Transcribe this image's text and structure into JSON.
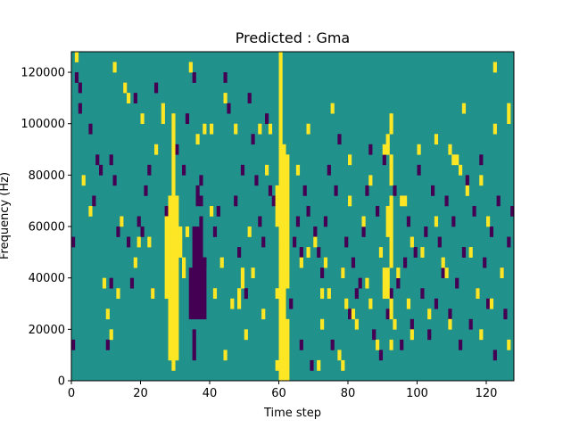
{
  "chart_data": {
    "type": "heatmap",
    "title": "Predicted : Gma",
    "xlabel": "Time step",
    "ylabel": "Frequency (Hz)",
    "xlim": [
      0,
      128
    ],
    "ylim": [
      0,
      128000
    ],
    "x_ticks": [
      0,
      20,
      40,
      60,
      80,
      100,
      120
    ],
    "y_ticks": [
      0,
      20000,
      40000,
      60000,
      80000,
      100000,
      120000
    ],
    "x_tick_labels": [
      "0",
      "20",
      "40",
      "60",
      "80",
      "100",
      "120"
    ],
    "y_tick_labels": [
      "0",
      "20000",
      "40000",
      "60000",
      "80000",
      "100000",
      "120000"
    ],
    "rows": 32,
    "row_height_hz": 4000,
    "colormap": "viridis",
    "colors": {
      "background": "#21918c",
      "high": "#fde725",
      "low": "#440154"
    },
    "high_cells": [
      [
        28,
        2
      ],
      [
        28,
        3
      ],
      [
        28,
        4
      ],
      [
        28,
        5
      ],
      [
        28,
        6
      ],
      [
        28,
        7
      ],
      [
        28,
        8
      ],
      [
        28,
        9
      ],
      [
        28,
        10
      ],
      [
        28,
        11
      ],
      [
        28,
        12
      ],
      [
        28,
        13
      ],
      [
        28,
        14
      ],
      [
        28,
        15
      ],
      [
        28,
        16
      ],
      [
        28,
        17
      ],
      [
        29,
        1
      ],
      [
        29,
        2
      ],
      [
        29,
        3
      ],
      [
        29,
        4
      ],
      [
        29,
        5
      ],
      [
        29,
        6
      ],
      [
        29,
        7
      ],
      [
        29,
        8
      ],
      [
        29,
        9
      ],
      [
        29,
        10
      ],
      [
        29,
        11
      ],
      [
        29,
        12
      ],
      [
        29,
        13
      ],
      [
        29,
        14
      ],
      [
        29,
        15
      ],
      [
        29,
        16
      ],
      [
        29,
        17
      ],
      [
        29,
        18
      ],
      [
        29,
        19
      ],
      [
        29,
        20
      ],
      [
        29,
        21
      ],
      [
        29,
        22
      ],
      [
        29,
        23
      ],
      [
        29,
        24
      ],
      [
        29,
        25
      ],
      [
        30,
        2
      ],
      [
        30,
        3
      ],
      [
        30,
        4
      ],
      [
        30,
        5
      ],
      [
        30,
        6
      ],
      [
        30,
        7
      ],
      [
        30,
        8
      ],
      [
        30,
        9
      ],
      [
        30,
        10
      ],
      [
        30,
        11
      ],
      [
        30,
        12
      ],
      [
        30,
        13
      ],
      [
        30,
        14
      ],
      [
        30,
        15
      ],
      [
        30,
        16
      ],
      [
        30,
        17
      ],
      [
        27,
        8
      ],
      [
        27,
        9
      ],
      [
        27,
        10
      ],
      [
        27,
        11
      ],
      [
        27,
        12
      ],
      [
        27,
        13
      ],
      [
        27,
        14
      ],
      [
        27,
        15
      ],
      [
        31,
        12
      ],
      [
        31,
        13
      ],
      [
        31,
        14
      ],
      [
        32,
        10
      ],
      [
        32,
        11
      ],
      [
        33,
        14
      ],
      [
        60,
        0
      ],
      [
        60,
        1
      ],
      [
        60,
        2
      ],
      [
        60,
        3
      ],
      [
        60,
        4
      ],
      [
        60,
        5
      ],
      [
        60,
        6
      ],
      [
        60,
        7
      ],
      [
        60,
        8
      ],
      [
        60,
        9
      ],
      [
        60,
        10
      ],
      [
        60,
        11
      ],
      [
        60,
        12
      ],
      [
        60,
        13
      ],
      [
        60,
        14
      ],
      [
        60,
        15
      ],
      [
        60,
        16
      ],
      [
        60,
        17
      ],
      [
        60,
        18
      ],
      [
        60,
        19
      ],
      [
        60,
        20
      ],
      [
        60,
        21
      ],
      [
        60,
        22
      ],
      [
        60,
        23
      ],
      [
        60,
        24
      ],
      [
        60,
        25
      ],
      [
        60,
        26
      ],
      [
        60,
        27
      ],
      [
        60,
        28
      ],
      [
        60,
        29
      ],
      [
        60,
        30
      ],
      [
        60,
        31
      ],
      [
        61,
        0
      ],
      [
        61,
        1
      ],
      [
        61,
        2
      ],
      [
        61,
        3
      ],
      [
        61,
        4
      ],
      [
        61,
        5
      ],
      [
        61,
        6
      ],
      [
        61,
        7
      ],
      [
        61,
        8
      ],
      [
        61,
        9
      ],
      [
        61,
        10
      ],
      [
        61,
        11
      ],
      [
        61,
        12
      ],
      [
        61,
        13
      ],
      [
        61,
        14
      ],
      [
        61,
        15
      ],
      [
        61,
        16
      ],
      [
        61,
        17
      ],
      [
        61,
        18
      ],
      [
        61,
        19
      ],
      [
        61,
        20
      ],
      [
        61,
        21
      ],
      [
        61,
        22
      ],
      [
        62,
        0
      ],
      [
        62,
        1
      ],
      [
        62,
        2
      ],
      [
        62,
        3
      ],
      [
        62,
        4
      ],
      [
        62,
        5
      ],
      [
        62,
        9
      ],
      [
        62,
        10
      ],
      [
        62,
        11
      ],
      [
        62,
        12
      ],
      [
        62,
        13
      ],
      [
        62,
        14
      ],
      [
        62,
        15
      ],
      [
        62,
        16
      ],
      [
        62,
        17
      ],
      [
        62,
        18
      ],
      [
        62,
        19
      ],
      [
        62,
        20
      ],
      [
        62,
        21
      ],
      [
        59,
        1
      ],
      [
        59,
        8
      ],
      [
        59,
        15
      ],
      [
        59,
        16
      ],
      [
        59,
        17
      ],
      [
        59,
        18
      ],
      [
        91,
        8
      ],
      [
        91,
        9
      ],
      [
        91,
        10
      ],
      [
        91,
        14
      ],
      [
        91,
        15
      ],
      [
        91,
        16
      ],
      [
        91,
        22
      ],
      [
        91,
        23
      ],
      [
        92,
        6
      ],
      [
        92,
        7
      ],
      [
        92,
        11
      ],
      [
        92,
        12
      ],
      [
        92,
        13
      ],
      [
        92,
        14
      ],
      [
        92,
        15
      ],
      [
        92,
        16
      ],
      [
        92,
        17
      ],
      [
        92,
        19
      ],
      [
        92,
        20
      ],
      [
        92,
        21
      ],
      [
        92,
        24
      ],
      [
        92,
        25
      ],
      [
        90,
        8
      ],
      [
        90,
        9
      ],
      [
        90,
        10
      ],
      [
        90,
        22
      ],
      [
        1,
        31
      ],
      [
        3,
        19
      ],
      [
        5,
        16
      ],
      [
        9,
        9
      ],
      [
        10,
        6
      ],
      [
        11,
        4
      ],
      [
        12,
        30
      ],
      [
        13,
        8
      ],
      [
        14,
        15
      ],
      [
        15,
        28
      ],
      [
        16,
        27
      ],
      [
        18,
        11
      ],
      [
        19,
        13
      ],
      [
        20,
        25
      ],
      [
        22,
        13
      ],
      [
        23,
        8
      ],
      [
        24,
        22
      ],
      [
        26,
        26
      ],
      [
        26,
        25
      ],
      [
        34,
        30
      ],
      [
        36,
        23
      ],
      [
        38,
        24
      ],
      [
        40,
        24
      ],
      [
        40,
        16
      ],
      [
        41,
        8
      ],
      [
        43,
        11
      ],
      [
        44,
        27
      ],
      [
        44,
        2
      ],
      [
        46,
        7
      ],
      [
        47,
        24
      ],
      [
        48,
        8
      ],
      [
        48,
        7
      ],
      [
        49,
        10
      ],
      [
        49,
        9
      ],
      [
        50,
        4
      ],
      [
        51,
        14
      ],
      [
        52,
        10
      ],
      [
        54,
        24
      ],
      [
        55,
        6
      ],
      [
        56,
        20
      ],
      [
        57,
        24
      ],
      [
        65,
        20
      ],
      [
        66,
        11
      ],
      [
        68,
        24
      ],
      [
        68,
        12
      ],
      [
        70,
        13
      ],
      [
        71,
        1
      ],
      [
        72,
        5
      ],
      [
        72,
        8
      ],
      [
        73,
        11
      ],
      [
        74,
        8
      ],
      [
        75,
        26
      ],
      [
        77,
        2
      ],
      [
        78,
        1
      ],
      [
        78,
        10
      ],
      [
        79,
        7
      ],
      [
        80,
        17
      ],
      [
        80,
        21
      ],
      [
        81,
        6
      ],
      [
        82,
        5
      ],
      [
        84,
        15
      ],
      [
        85,
        9
      ],
      [
        86,
        7
      ],
      [
        86,
        19
      ],
      [
        88,
        3
      ],
      [
        89,
        12
      ],
      [
        92,
        3
      ],
      [
        93,
        5
      ],
      [
        94,
        10
      ],
      [
        95,
        17
      ],
      [
        96,
        17
      ],
      [
        97,
        7
      ],
      [
        98,
        13
      ],
      [
        98,
        4
      ],
      [
        100,
        22
      ],
      [
        101,
        12
      ],
      [
        103,
        6
      ],
      [
        105,
        23
      ],
      [
        105,
        15
      ],
      [
        107,
        11
      ],
      [
        108,
        10
      ],
      [
        109,
        22
      ],
      [
        109,
        5
      ],
      [
        110,
        21
      ],
      [
        111,
        21
      ],
      [
        112,
        20
      ],
      [
        113,
        26
      ],
      [
        114,
        18
      ],
      [
        115,
        12
      ],
      [
        117,
        8
      ],
      [
        118,
        4
      ],
      [
        118,
        19
      ],
      [
        120,
        15
      ],
      [
        121,
        7
      ],
      [
        122,
        24
      ],
      [
        122,
        30
      ],
      [
        124,
        10
      ],
      [
        126,
        3
      ],
      [
        126,
        25
      ],
      [
        126,
        26
      ]
    ],
    "low_cells": [
      [
        34,
        6
      ],
      [
        34,
        7
      ],
      [
        34,
        8
      ],
      [
        34,
        9
      ],
      [
        34,
        10
      ],
      [
        35,
        6
      ],
      [
        35,
        7
      ],
      [
        35,
        8
      ],
      [
        35,
        9
      ],
      [
        35,
        10
      ],
      [
        35,
        11
      ],
      [
        36,
        6
      ],
      [
        36,
        7
      ],
      [
        36,
        8
      ],
      [
        36,
        9
      ],
      [
        36,
        10
      ],
      [
        36,
        11
      ],
      [
        36,
        12
      ],
      [
        36,
        13
      ],
      [
        36,
        14
      ],
      [
        36,
        17
      ],
      [
        36,
        18
      ],
      [
        37,
        6
      ],
      [
        37,
        7
      ],
      [
        37,
        8
      ],
      [
        37,
        9
      ],
      [
        37,
        10
      ],
      [
        37,
        11
      ],
      [
        37,
        12
      ],
      [
        37,
        13
      ],
      [
        37,
        14
      ],
      [
        37,
        15
      ],
      [
        37,
        17
      ],
      [
        38,
        6
      ],
      [
        38,
        7
      ],
      [
        38,
        8
      ],
      [
        38,
        9
      ],
      [
        38,
        10
      ],
      [
        38,
        11
      ],
      [
        35,
        12
      ],
      [
        35,
        13
      ],
      [
        35,
        14
      ],
      [
        35,
        2
      ],
      [
        35,
        3
      ],
      [
        35,
        4
      ],
      [
        0,
        3
      ],
      [
        0,
        13
      ],
      [
        1,
        29
      ],
      [
        2,
        28
      ],
      [
        2,
        26
      ],
      [
        5,
        24
      ],
      [
        6,
        17
      ],
      [
        7,
        21
      ],
      [
        8,
        20
      ],
      [
        10,
        3
      ],
      [
        11,
        9
      ],
      [
        11,
        21
      ],
      [
        12,
        19
      ],
      [
        13,
        14
      ],
      [
        14,
        15
      ],
      [
        15,
        28
      ],
      [
        16,
        13
      ],
      [
        17,
        9
      ],
      [
        18,
        27
      ],
      [
        19,
        15
      ],
      [
        20,
        14
      ],
      [
        21,
        18
      ],
      [
        22,
        20
      ],
      [
        23,
        8
      ],
      [
        24,
        28
      ],
      [
        27,
        16
      ],
      [
        30,
        22
      ],
      [
        32,
        20
      ],
      [
        33,
        25
      ],
      [
        35,
        29
      ],
      [
        37,
        19
      ],
      [
        38,
        11
      ],
      [
        41,
        14
      ],
      [
        42,
        16
      ],
      [
        44,
        29
      ],
      [
        45,
        26
      ],
      [
        47,
        17
      ],
      [
        48,
        12
      ],
      [
        49,
        20
      ],
      [
        50,
        8
      ],
      [
        51,
        27
      ],
      [
        52,
        23
      ],
      [
        53,
        19
      ],
      [
        54,
        15
      ],
      [
        55,
        13
      ],
      [
        56,
        25
      ],
      [
        57,
        18
      ],
      [
        58,
        17
      ],
      [
        63,
        7
      ],
      [
        64,
        13
      ],
      [
        65,
        15
      ],
      [
        66,
        3
      ],
      [
        66,
        12
      ],
      [
        67,
        18
      ],
      [
        68,
        16
      ],
      [
        69,
        1
      ],
      [
        70,
        14
      ],
      [
        71,
        12
      ],
      [
        72,
        10
      ],
      [
        73,
        15
      ],
      [
        74,
        20
      ],
      [
        75,
        3
      ],
      [
        76,
        18
      ],
      [
        77,
        23
      ],
      [
        78,
        10
      ],
      [
        79,
        13
      ],
      [
        80,
        6
      ],
      [
        81,
        11
      ],
      [
        82,
        8
      ],
      [
        83,
        9
      ],
      [
        84,
        14
      ],
      [
        85,
        18
      ],
      [
        86,
        22
      ],
      [
        87,
        4
      ],
      [
        88,
        16
      ],
      [
        89,
        2
      ],
      [
        90,
        21
      ],
      [
        91,
        6
      ],
      [
        92,
        8
      ],
      [
        93,
        18
      ],
      [
        94,
        9
      ],
      [
        95,
        3
      ],
      [
        96,
        11
      ],
      [
        97,
        15
      ],
      [
        98,
        5
      ],
      [
        99,
        12
      ],
      [
        100,
        20
      ],
      [
        101,
        8
      ],
      [
        102,
        14
      ],
      [
        103,
        4
      ],
      [
        104,
        18
      ],
      [
        105,
        7
      ],
      [
        106,
        13
      ],
      [
        107,
        10
      ],
      [
        108,
        17
      ],
      [
        109,
        6
      ],
      [
        110,
        15
      ],
      [
        111,
        9
      ],
      [
        112,
        3
      ],
      [
        113,
        12
      ],
      [
        114,
        19
      ],
      [
        115,
        5
      ],
      [
        116,
        16
      ],
      [
        117,
        8
      ],
      [
        118,
        21
      ],
      [
        119,
        11
      ],
      [
        120,
        7
      ],
      [
        121,
        14
      ],
      [
        122,
        2
      ],
      [
        123,
        17
      ],
      [
        124,
        10
      ],
      [
        125,
        6
      ],
      [
        126,
        13
      ],
      [
        127,
        16
      ]
    ]
  }
}
